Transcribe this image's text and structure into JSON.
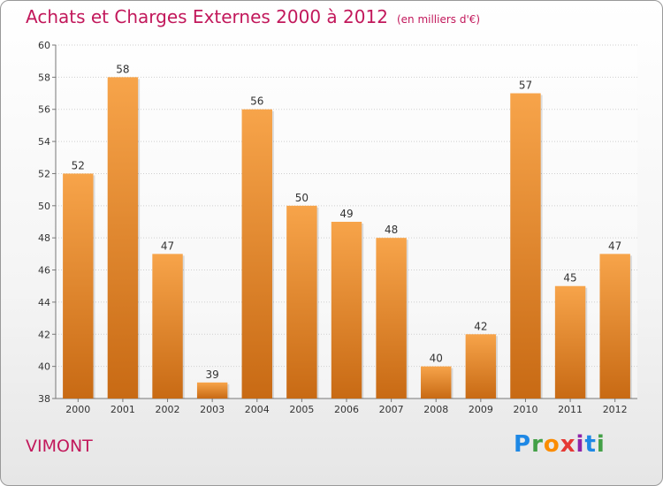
{
  "header": {
    "title": "Achats et Charges Externes 2000 à 2012",
    "subtitle": "(en milliers d'€)"
  },
  "footer": {
    "commune": "VIMONT",
    "logo_letters": [
      "P",
      "r",
      "o",
      "x",
      "i",
      "t",
      "i"
    ],
    "logo_colors": [
      "#1e88e5",
      "#43a047",
      "#fb8c00",
      "#e53935",
      "#8e24aa",
      "#1e88e5",
      "#43a047"
    ]
  },
  "chart_data": {
    "type": "bar",
    "title": "Achats et Charges Externes 2000 à 2012",
    "subtitle": "(en milliers d'€)",
    "categories": [
      "2000",
      "2001",
      "2002",
      "2003",
      "2004",
      "2005",
      "2006",
      "2007",
      "2008",
      "2009",
      "2010",
      "2011",
      "2012"
    ],
    "values": [
      52,
      58,
      47,
      39,
      56,
      50,
      49,
      48,
      40,
      42,
      57,
      45,
      47
    ],
    "ylim": [
      38,
      60
    ],
    "yticks": [
      38,
      40,
      42,
      44,
      46,
      48,
      50,
      52,
      54,
      56,
      58,
      60
    ],
    "grid": true,
    "bar_color_top": "#f7a44a",
    "bar_color_bottom": "#c86a14"
  }
}
